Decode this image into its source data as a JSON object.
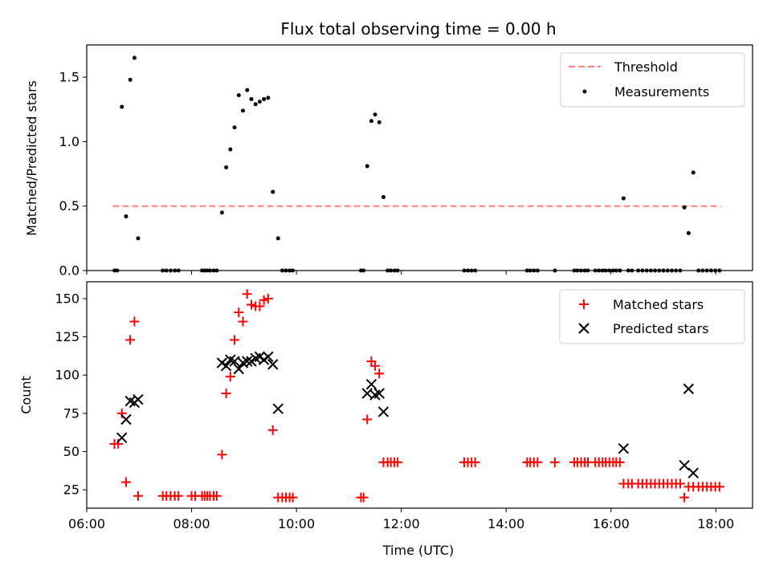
{
  "title": "Flux total observing time = 0.00 h",
  "colors": {
    "threshold": "#ff7f7f",
    "measurements": "#000000",
    "matched": "#ff0000",
    "predicted": "#000000"
  },
  "chart_data": [
    {
      "type": "scatter",
      "panel": "top",
      "ylabel": "Matched/Predicted stars",
      "xlim": [
        6.0,
        18.7
      ],
      "ylim": [
        0,
        1.75
      ],
      "yticks": [
        0.0,
        0.5,
        1.0,
        1.5
      ],
      "ytick_labels": [
        "0.0",
        "0.5",
        "1.0",
        "1.5"
      ],
      "legend_position": "upper right",
      "threshold": {
        "name": "Threshold",
        "x": [
          6.5,
          18.1
        ],
        "y": 0.5,
        "style": "dashed"
      },
      "series": [
        {
          "name": "Measurements",
          "marker": "dot",
          "points": [
            [
              6.53,
              0
            ],
            [
              6.58,
              0
            ],
            [
              6.67,
              1.27
            ],
            [
              6.75,
              0.42
            ],
            [
              6.83,
              1.48
            ],
            [
              6.91,
              1.65
            ],
            [
              6.98,
              0.25
            ],
            [
              7.45,
              0
            ],
            [
              7.52,
              0
            ],
            [
              7.6,
              0
            ],
            [
              7.68,
              0
            ],
            [
              7.75,
              0
            ],
            [
              8.2,
              0
            ],
            [
              8.25,
              0
            ],
            [
              8.3,
              0
            ],
            [
              8.35,
              0
            ],
            [
              8.42,
              0
            ],
            [
              8.48,
              0
            ],
            [
              8.58,
              0.45
            ],
            [
              8.66,
              0.8
            ],
            [
              8.74,
              0.94
            ],
            [
              8.82,
              1.11
            ],
            [
              8.9,
              1.36
            ],
            [
              8.98,
              1.24
            ],
            [
              9.06,
              1.4
            ],
            [
              9.14,
              1.33
            ],
            [
              9.22,
              1.29
            ],
            [
              9.3,
              1.31
            ],
            [
              9.38,
              1.33
            ],
            [
              9.46,
              1.34
            ],
            [
              9.55,
              0.61
            ],
            [
              9.65,
              0.25
            ],
            [
              9.73,
              0
            ],
            [
              9.8,
              0
            ],
            [
              9.87,
              0
            ],
            [
              9.93,
              0
            ],
            [
              11.23,
              0
            ],
            [
              11.28,
              0
            ],
            [
              11.35,
              0.81
            ],
            [
              11.43,
              1.16
            ],
            [
              11.5,
              1.21
            ],
            [
              11.58,
              1.15
            ],
            [
              11.66,
              0.57
            ],
            [
              11.74,
              0
            ],
            [
              11.8,
              0
            ],
            [
              11.87,
              0
            ],
            [
              11.93,
              0
            ],
            [
              13.2,
              0
            ],
            [
              13.27,
              0
            ],
            [
              13.34,
              0
            ],
            [
              13.41,
              0
            ],
            [
              14.4,
              0
            ],
            [
              14.46,
              0
            ],
            [
              14.53,
              0
            ],
            [
              14.6,
              0
            ],
            [
              14.93,
              0
            ],
            [
              15.3,
              0
            ],
            [
              15.36,
              0
            ],
            [
              15.43,
              0
            ],
            [
              15.5,
              0
            ],
            [
              15.56,
              0
            ],
            [
              15.7,
              0
            ],
            [
              15.77,
              0
            ],
            [
              15.84,
              0
            ],
            [
              15.9,
              0
            ],
            [
              15.97,
              0
            ],
            [
              16.04,
              0
            ],
            [
              16.1,
              0
            ],
            [
              16.17,
              0
            ],
            [
              16.24,
              0.56
            ],
            [
              16.33,
              0
            ],
            [
              16.4,
              0
            ],
            [
              16.52,
              0
            ],
            [
              16.6,
              0
            ],
            [
              16.68,
              0
            ],
            [
              16.76,
              0
            ],
            [
              16.84,
              0
            ],
            [
              16.92,
              0
            ],
            [
              17.0,
              0
            ],
            [
              17.08,
              0
            ],
            [
              17.16,
              0
            ],
            [
              17.24,
              0
            ],
            [
              17.32,
              0
            ],
            [
              17.4,
              0.49
            ],
            [
              17.48,
              0.29
            ],
            [
              17.57,
              0.76
            ],
            [
              17.67,
              0
            ],
            [
              17.75,
              0
            ],
            [
              17.83,
              0
            ],
            [
              17.91,
              0
            ],
            [
              17.99,
              0
            ],
            [
              18.07,
              0
            ]
          ]
        }
      ]
    },
    {
      "type": "scatter",
      "panel": "bottom",
      "xlabel": "Time (UTC)",
      "ylabel": "Count",
      "xlim": [
        6.0,
        18.7
      ],
      "ylim": [
        13,
        161
      ],
      "xticks": [
        6,
        8,
        10,
        12,
        14,
        16,
        18
      ],
      "xtick_labels": [
        "06:00",
        "08:00",
        "10:00",
        "12:00",
        "14:00",
        "16:00",
        "18:00"
      ],
      "yticks": [
        25,
        50,
        75,
        100,
        125,
        150
      ],
      "ytick_labels": [
        "25",
        "50",
        "75",
        "100",
        "125",
        "150"
      ],
      "legend_position": "upper right",
      "series": [
        {
          "name": "Matched stars",
          "marker": "plus",
          "points": [
            [
              6.53,
              55
            ],
            [
              6.6,
              55
            ],
            [
              6.67,
              75
            ],
            [
              6.75,
              30
            ],
            [
              6.83,
              123
            ],
            [
              6.91,
              135
            ],
            [
              6.98,
              21
            ],
            [
              7.45,
              21
            ],
            [
              7.52,
              21
            ],
            [
              7.6,
              21
            ],
            [
              7.68,
              21
            ],
            [
              7.75,
              21
            ],
            [
              8.0,
              21
            ],
            [
              8.07,
              21
            ],
            [
              8.2,
              21
            ],
            [
              8.25,
              21
            ],
            [
              8.3,
              21
            ],
            [
              8.35,
              21
            ],
            [
              8.42,
              21
            ],
            [
              8.48,
              21
            ],
            [
              8.58,
              48
            ],
            [
              8.66,
              88
            ],
            [
              8.74,
              99
            ],
            [
              8.82,
              123
            ],
            [
              8.9,
              141
            ],
            [
              8.98,
              135
            ],
            [
              9.06,
              153
            ],
            [
              9.14,
              146
            ],
            [
              9.22,
              145
            ],
            [
              9.3,
              145
            ],
            [
              9.38,
              149
            ],
            [
              9.46,
              150
            ],
            [
              9.55,
              64
            ],
            [
              9.65,
              20
            ],
            [
              9.73,
              20
            ],
            [
              9.8,
              20
            ],
            [
              9.87,
              20
            ],
            [
              9.93,
              20
            ],
            [
              11.23,
              20
            ],
            [
              11.28,
              20
            ],
            [
              11.35,
              71
            ],
            [
              11.43,
              109
            ],
            [
              11.5,
              106
            ],
            [
              11.58,
              101
            ],
            [
              11.66,
              43
            ],
            [
              11.74,
              43
            ],
            [
              11.8,
              43
            ],
            [
              11.87,
              43
            ],
            [
              11.93,
              43
            ],
            [
              13.2,
              43
            ],
            [
              13.27,
              43
            ],
            [
              13.34,
              43
            ],
            [
              13.41,
              43
            ],
            [
              14.4,
              43
            ],
            [
              14.46,
              43
            ],
            [
              14.53,
              43
            ],
            [
              14.6,
              43
            ],
            [
              14.93,
              43
            ],
            [
              15.3,
              43
            ],
            [
              15.36,
              43
            ],
            [
              15.43,
              43
            ],
            [
              15.5,
              43
            ],
            [
              15.56,
              43
            ],
            [
              15.7,
              43
            ],
            [
              15.77,
              43
            ],
            [
              15.84,
              43
            ],
            [
              15.9,
              43
            ],
            [
              15.97,
              43
            ],
            [
              16.04,
              43
            ],
            [
              16.1,
              43
            ],
            [
              16.17,
              43
            ],
            [
              16.24,
              29
            ],
            [
              16.33,
              29
            ],
            [
              16.4,
              29
            ],
            [
              16.52,
              29
            ],
            [
              16.6,
              29
            ],
            [
              16.68,
              29
            ],
            [
              16.76,
              29
            ],
            [
              16.84,
              29
            ],
            [
              16.92,
              29
            ],
            [
              17.0,
              29
            ],
            [
              17.08,
              29
            ],
            [
              17.16,
              29
            ],
            [
              17.24,
              29
            ],
            [
              17.32,
              29
            ],
            [
              17.4,
              20
            ],
            [
              17.48,
              27
            ],
            [
              17.57,
              27
            ],
            [
              17.67,
              27
            ],
            [
              17.75,
              27
            ],
            [
              17.83,
              27
            ],
            [
              17.91,
              27
            ],
            [
              17.99,
              27
            ],
            [
              18.07,
              27
            ]
          ]
        },
        {
          "name": "Predicted stars",
          "marker": "x",
          "points": [
            [
              6.67,
              59
            ],
            [
              6.75,
              71
            ],
            [
              6.83,
              83
            ],
            [
              6.91,
              82
            ],
            [
              6.98,
              84
            ],
            [
              8.58,
              108
            ],
            [
              8.66,
              106
            ],
            [
              8.74,
              110
            ],
            [
              8.82,
              109
            ],
            [
              8.9,
              104
            ],
            [
              8.98,
              108
            ],
            [
              9.06,
              109
            ],
            [
              9.14,
              109
            ],
            [
              9.22,
              111
            ],
            [
              9.3,
              112
            ],
            [
              9.38,
              110
            ],
            [
              9.46,
              112
            ],
            [
              9.55,
              107
            ],
            [
              9.65,
              78
            ],
            [
              11.35,
              88
            ],
            [
              11.43,
              94
            ],
            [
              11.5,
              87
            ],
            [
              11.58,
              88
            ],
            [
              11.66,
              76
            ],
            [
              16.24,
              52
            ],
            [
              17.4,
              41
            ],
            [
              17.48,
              91
            ],
            [
              17.57,
              36
            ]
          ]
        }
      ]
    }
  ]
}
